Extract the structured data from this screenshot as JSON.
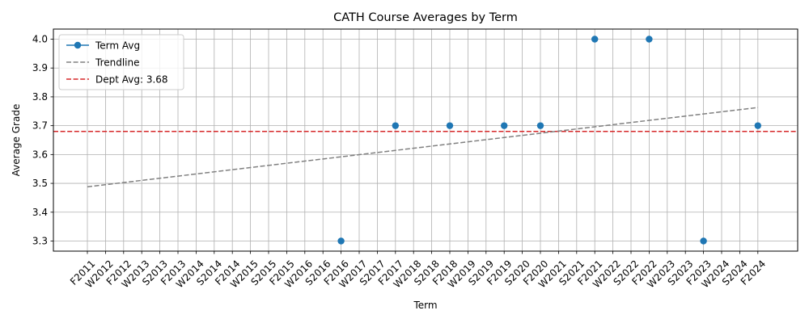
{
  "chart_data": {
    "type": "line",
    "title": "CATH Course Averages by Term",
    "xlabel": "Term",
    "ylabel": "Average Grade",
    "categories": [
      "F2011",
      "W2012",
      "F2012",
      "W2013",
      "S2013",
      "F2013",
      "W2014",
      "S2014",
      "F2014",
      "W2015",
      "S2015",
      "F2015",
      "W2016",
      "S2016",
      "F2016",
      "W2017",
      "S2017",
      "F2017",
      "W2018",
      "S2018",
      "F2018",
      "W2019",
      "S2019",
      "F2019",
      "S2020",
      "F2020",
      "W2021",
      "S2021",
      "F2021",
      "W2022",
      "S2022",
      "F2022",
      "W2023",
      "S2023",
      "F2023",
      "W2024",
      "S2024",
      "F2024"
    ],
    "yticks": [
      "3.3",
      "3.4",
      "3.5",
      "3.6",
      "3.7",
      "3.8",
      "3.9",
      "4.0"
    ],
    "ylim": [
      3.265,
      4.035
    ],
    "grid": true,
    "legend_position": "top-left",
    "series": [
      {
        "name": "Term Avg",
        "style": "markers",
        "color": "#1f77b4",
        "points": [
          {
            "x": "F2016",
            "y": 3.3
          },
          {
            "x": "F2017",
            "y": 3.7
          },
          {
            "x": "F2018",
            "y": 3.7
          },
          {
            "x": "F2019",
            "y": 3.7
          },
          {
            "x": "F2020",
            "y": 3.7
          },
          {
            "x": "F2021",
            "y": 4.0
          },
          {
            "x": "F2022",
            "y": 4.0
          },
          {
            "x": "F2023",
            "y": 3.3
          },
          {
            "x": "F2024",
            "y": 3.7
          }
        ]
      },
      {
        "name": "Trendline",
        "style": "dashed",
        "color": "#808080",
        "start": {
          "x": "F2011",
          "y": 3.488
        },
        "end": {
          "x": "F2024",
          "y": 3.763
        }
      },
      {
        "name": "Dept Avg: 3.68",
        "style": "dashed",
        "color": "#d62728",
        "y": 3.68
      }
    ]
  }
}
